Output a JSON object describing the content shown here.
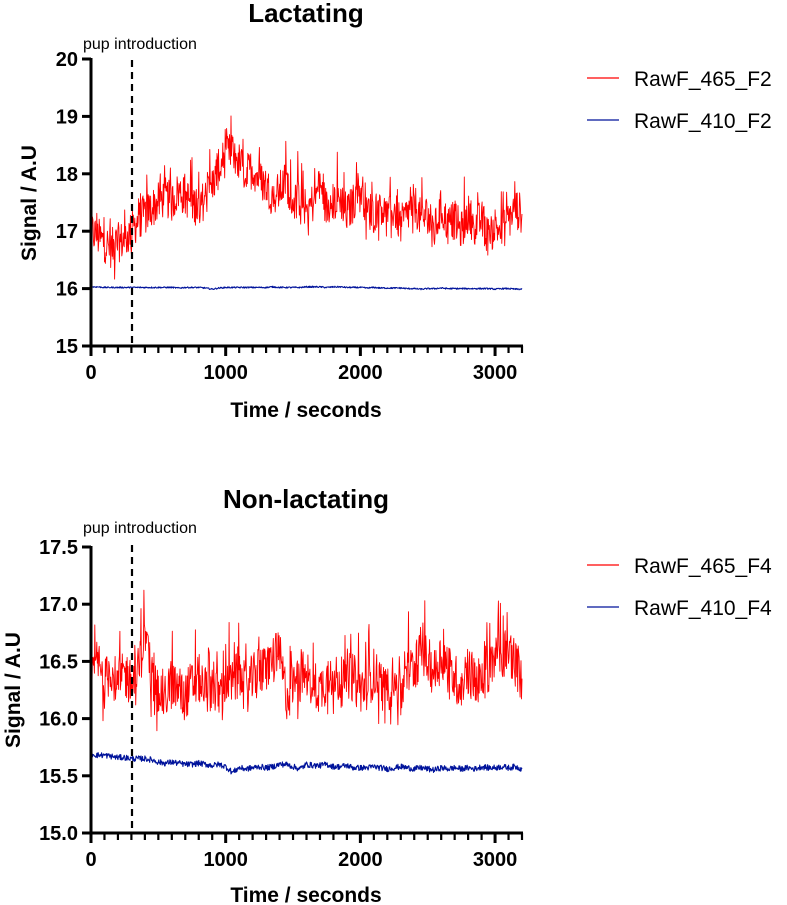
{
  "panels": [
    {
      "title": "Lactating",
      "annotation": "pup introduction",
      "xlabel": "Time / seconds",
      "ylabel": "Signal / A.U",
      "yticks": [
        "15",
        "16",
        "17",
        "18",
        "19",
        "20"
      ],
      "xticks": [
        "0",
        "1000",
        "2000",
        "3000"
      ],
      "legend": [
        {
          "label": "RawF_465_F2",
          "color": "#ff0000"
        },
        {
          "label": "RawF_410_F2",
          "color": "#00139b"
        }
      ]
    },
    {
      "title": "Non-lactating",
      "annotation": "pup introduction",
      "xlabel": "Time / seconds",
      "ylabel": "Signal / A.U",
      "yticks": [
        "15.0",
        "15.5",
        "16.0",
        "16.5",
        "17.0",
        "17.5"
      ],
      "xticks": [
        "0",
        "1000",
        "2000",
        "3000"
      ],
      "legend": [
        {
          "label": "RawF_465_F4",
          "color": "#ff0000"
        },
        {
          "label": "RawF_410_F4",
          "color": "#00139b"
        }
      ]
    }
  ],
  "chart_data": [
    {
      "type": "line",
      "title": "Lactating",
      "xlabel": "Time / seconds",
      "ylabel": "Signal / A.U",
      "xlim": [
        0,
        3200
      ],
      "ylim": [
        15,
        20
      ],
      "xticks": [
        0,
        1000,
        2000,
        3000
      ],
      "yticks": [
        15,
        16,
        17,
        18,
        19,
        20
      ],
      "grid": false,
      "legend_position": "right",
      "annotations": [
        {
          "type": "vline",
          "x": 300,
          "style": "dashed",
          "label": "pup introduction"
        }
      ],
      "x": [
        0,
        50,
        100,
        150,
        200,
        250,
        300,
        350,
        400,
        450,
        500,
        550,
        600,
        650,
        700,
        750,
        800,
        850,
        900,
        950,
        1000,
        1050,
        1100,
        1150,
        1200,
        1250,
        1300,
        1350,
        1400,
        1450,
        1500,
        1550,
        1600,
        1650,
        1700,
        1750,
        1800,
        1850,
        1900,
        1950,
        2000,
        2050,
        2100,
        2150,
        2200,
        2250,
        2300,
        2350,
        2400,
        2450,
        2500,
        2550,
        2600,
        2650,
        2700,
        2750,
        2800,
        2850,
        2900,
        2950,
        3000,
        3050,
        3100,
        3150,
        3200
      ],
      "series": [
        {
          "name": "RawF_465_F2",
          "color": "#ff0000",
          "values": [
            17.0,
            16.9,
            16.8,
            16.7,
            16.8,
            16.85,
            17.0,
            17.2,
            17.3,
            17.4,
            17.5,
            17.6,
            17.5,
            17.7,
            17.6,
            17.5,
            17.4,
            17.6,
            17.8,
            18.1,
            18.3,
            18.4,
            18.2,
            18.0,
            18.1,
            17.9,
            17.8,
            17.6,
            17.7,
            17.9,
            17.5,
            17.6,
            17.4,
            17.5,
            17.8,
            17.4,
            17.5,
            17.6,
            17.3,
            17.5,
            17.8,
            17.4,
            17.3,
            17.5,
            17.2,
            17.4,
            17.1,
            17.3,
            17.5,
            17.2,
            17.3,
            17.0,
            17.4,
            17.1,
            17.2,
            17.0,
            17.3,
            17.1,
            17.2,
            16.9,
            17.1,
            17.0,
            17.2,
            17.4,
            17.3
          ]
        },
        {
          "name": "RawF_410_F2",
          "color": "#00139b",
          "values": [
            16.03,
            16.03,
            16.02,
            16.02,
            16.02,
            16.02,
            16.02,
            16.02,
            16.02,
            16.02,
            16.02,
            16.02,
            16.02,
            16.01,
            16.02,
            16.02,
            16.02,
            16.01,
            15.99,
            16.01,
            16.02,
            16.02,
            16.02,
            16.02,
            16.02,
            16.02,
            16.02,
            16.03,
            16.02,
            16.02,
            16.02,
            16.02,
            16.03,
            16.03,
            16.03,
            16.02,
            16.03,
            16.03,
            16.02,
            16.02,
            16.02,
            16.01,
            16.02,
            16.01,
            16.01,
            16.01,
            16.01,
            16.0,
            16.0,
            15.99,
            16.0,
            16.0,
            16.01,
            16.0,
            16.0,
            16.0,
            16.0,
            16.0,
            16.0,
            16.0,
            15.99,
            16.0,
            16.0,
            15.99,
            15.99
          ]
        }
      ]
    },
    {
      "type": "line",
      "title": "Non-lactating",
      "xlabel": "Time / seconds",
      "ylabel": "Signal / A.U",
      "xlim": [
        0,
        3200
      ],
      "ylim": [
        15.0,
        17.5
      ],
      "xticks": [
        0,
        1000,
        2000,
        3000
      ],
      "yticks": [
        15.0,
        15.5,
        16.0,
        16.5,
        17.0,
        17.5
      ],
      "grid": false,
      "legend_position": "right",
      "annotations": [
        {
          "type": "vline",
          "x": 300,
          "style": "dashed",
          "label": "pup introduction"
        }
      ],
      "x": [
        0,
        50,
        100,
        150,
        200,
        250,
        300,
        350,
        400,
        450,
        500,
        550,
        600,
        650,
        700,
        750,
        800,
        850,
        900,
        950,
        1000,
        1050,
        1100,
        1150,
        1200,
        1250,
        1300,
        1350,
        1400,
        1450,
        1500,
        1550,
        1600,
        1650,
        1700,
        1750,
        1800,
        1850,
        1900,
        1950,
        2000,
        2050,
        2100,
        2150,
        2200,
        2250,
        2300,
        2350,
        2400,
        2450,
        2500,
        2550,
        2600,
        2650,
        2700,
        2750,
        2800,
        2850,
        2900,
        2950,
        3000,
        3050,
        3100,
        3150,
        3200
      ],
      "series": [
        {
          "name": "RawF_465_F4",
          "color": "#ff0000",
          "values": [
            16.35,
            16.5,
            16.3,
            16.45,
            16.25,
            16.4,
            16.3,
            16.35,
            16.8,
            16.35,
            16.25,
            16.2,
            16.3,
            16.25,
            16.2,
            16.3,
            16.35,
            16.25,
            16.3,
            16.2,
            16.35,
            16.3,
            16.4,
            16.25,
            16.35,
            16.4,
            16.45,
            16.5,
            16.55,
            16.2,
            16.3,
            16.35,
            16.4,
            16.3,
            16.25,
            16.35,
            16.4,
            16.3,
            16.4,
            16.35,
            16.25,
            16.3,
            16.4,
            16.3,
            16.25,
            16.35,
            16.2,
            16.4,
            16.45,
            16.6,
            16.5,
            16.4,
            16.55,
            16.45,
            16.35,
            16.3,
            16.4,
            16.35,
            16.3,
            16.45,
            16.5,
            16.55,
            16.6,
            16.5,
            16.35
          ]
        },
        {
          "name": "RawF_410_F4",
          "color": "#00139b",
          "values": [
            15.69,
            15.68,
            15.68,
            15.67,
            15.66,
            15.66,
            15.65,
            15.65,
            15.65,
            15.64,
            15.62,
            15.61,
            15.62,
            15.61,
            15.6,
            15.6,
            15.61,
            15.6,
            15.59,
            15.6,
            15.58,
            15.53,
            15.57,
            15.56,
            15.57,
            15.58,
            15.57,
            15.58,
            15.6,
            15.6,
            15.58,
            15.56,
            15.6,
            15.59,
            15.59,
            15.6,
            15.58,
            15.58,
            15.59,
            15.57,
            15.57,
            15.57,
            15.58,
            15.57,
            15.56,
            15.57,
            15.58,
            15.57,
            15.56,
            15.57,
            15.56,
            15.55,
            15.57,
            15.56,
            15.57,
            15.56,
            15.57,
            15.56,
            15.58,
            15.57,
            15.57,
            15.58,
            15.57,
            15.58,
            15.56
          ]
        }
      ]
    }
  ]
}
